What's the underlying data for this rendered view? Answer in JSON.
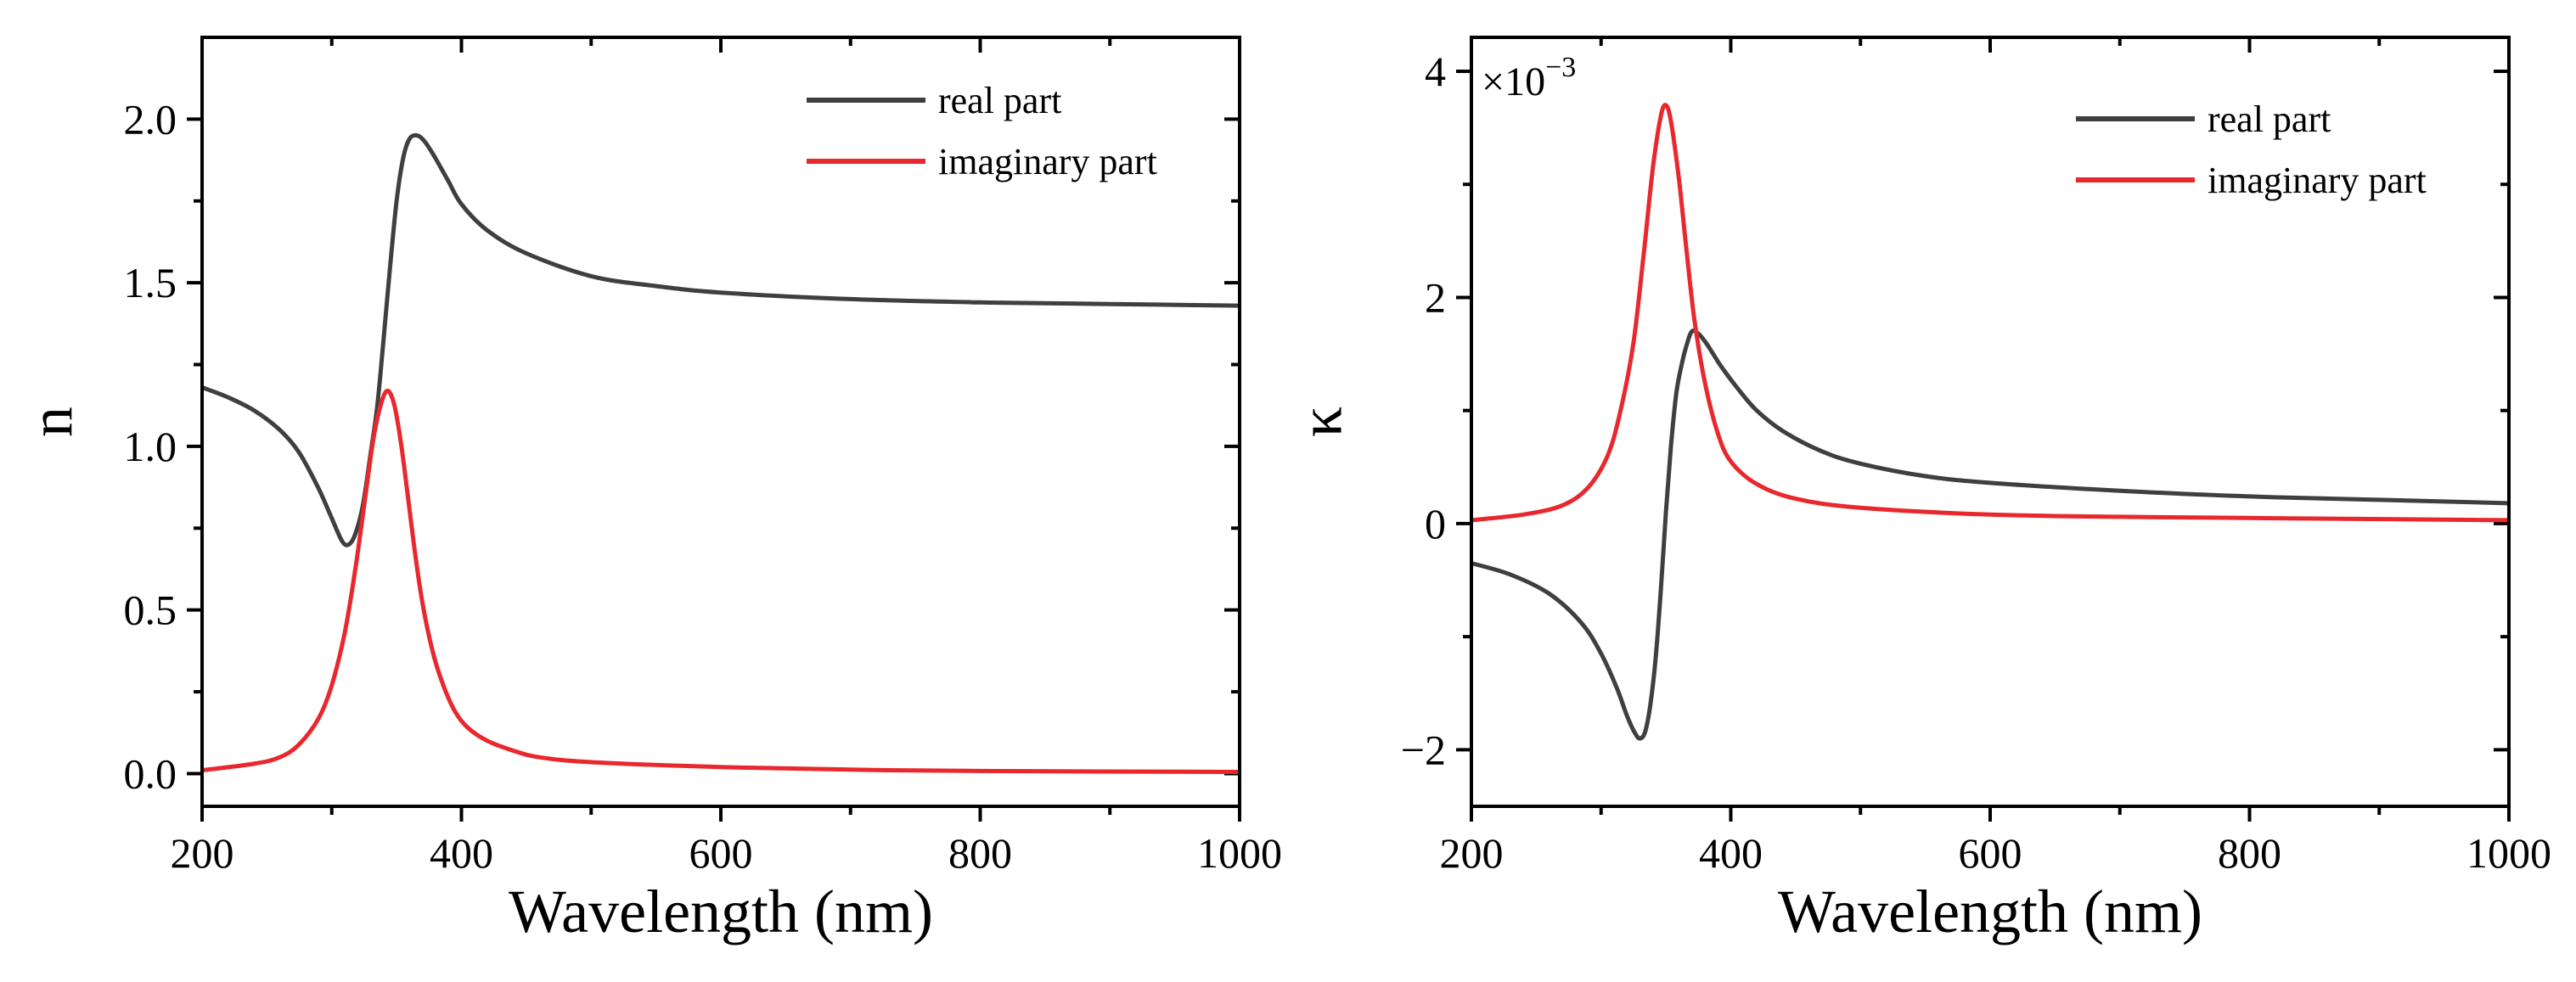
{
  "chart_data": [
    {
      "type": "line",
      "xlabel": "Wavelength (nm)",
      "ylabel": "n",
      "xlim": [
        200,
        1000
      ],
      "ylim": [
        -0.1,
        2.25
      ],
      "xticks": [
        200,
        400,
        600,
        800,
        1000
      ],
      "xtick_labels": [
        "200",
        "400",
        "600",
        "800",
        "1000"
      ],
      "yticks": [
        0.0,
        0.5,
        1.0,
        1.5,
        2.0
      ],
      "ytick_labels": [
        "0.0",
        "0.5",
        "1.0",
        "1.5",
        "2.0"
      ],
      "legend_position": "top-right",
      "series": [
        {
          "name": "real part",
          "color": "#3f3f3f",
          "x": [
            200,
            220,
            240,
            260,
            275,
            290,
            300,
            308,
            313,
            318,
            324,
            330,
            335,
            340,
            345,
            350,
            355,
            360,
            366,
            372,
            380,
            390,
            400,
            420,
            450,
            500,
            550,
            600,
            700,
            800,
            900,
            1000
          ],
          "y": [
            1.18,
            1.15,
            1.11,
            1.05,
            0.98,
            0.87,
            0.78,
            0.71,
            0.7,
            0.73,
            0.82,
            0.98,
            1.12,
            1.33,
            1.55,
            1.75,
            1.88,
            1.94,
            1.95,
            1.93,
            1.88,
            1.81,
            1.74,
            1.66,
            1.59,
            1.52,
            1.49,
            1.47,
            1.45,
            1.44,
            1.435,
            1.43
          ]
        },
        {
          "name": "imaginary part",
          "color": "#e8282d",
          "x": [
            200,
            240,
            260,
            275,
            290,
            300,
            310,
            318,
            325,
            332,
            338,
            343,
            348,
            353,
            358,
            364,
            370,
            378,
            386,
            395,
            405,
            420,
            440,
            460,
            500,
            600,
            700,
            800,
            1000
          ],
          "y": [
            0.01,
            0.03,
            0.05,
            0.09,
            0.17,
            0.27,
            0.43,
            0.62,
            0.82,
            1.02,
            1.13,
            1.17,
            1.13,
            1.02,
            0.87,
            0.68,
            0.52,
            0.37,
            0.27,
            0.19,
            0.14,
            0.1,
            0.07,
            0.05,
            0.035,
            0.02,
            0.012,
            0.008,
            0.005
          ]
        }
      ]
    },
    {
      "type": "line",
      "xlabel": "Wavelength (nm)",
      "ylabel": "κ",
      "scale_label": "×10",
      "scale_exponent": "−3",
      "xlim": [
        200,
        1000
      ],
      "ylim": [
        -2.5,
        4.3
      ],
      "xticks": [
        200,
        400,
        600,
        800,
        1000
      ],
      "xtick_labels": [
        "200",
        "400",
        "600",
        "800",
        "1000"
      ],
      "yticks": [
        -2,
        0,
        2,
        4
      ],
      "ytick_labels": [
        "−2",
        "0",
        "2",
        "4"
      ],
      "legend_position": "top-right",
      "series": [
        {
          "name": "real part",
          "color": "#3f3f3f",
          "x": [
            200,
            230,
            260,
            285,
            300,
            312,
            320,
            326,
            330,
            334,
            338,
            342,
            346,
            350,
            354,
            358,
            362,
            366,
            370,
            375,
            382,
            392,
            405,
            420,
            440,
            470,
            500,
            550,
            600,
            700,
            800,
            900,
            1000
          ],
          "y": [
            -0.35,
            -0.45,
            -0.62,
            -0.88,
            -1.15,
            -1.45,
            -1.7,
            -1.85,
            -1.9,
            -1.84,
            -1.6,
            -1.2,
            -0.6,
            0.1,
            0.7,
            1.15,
            1.4,
            1.58,
            1.7,
            1.68,
            1.58,
            1.4,
            1.2,
            1.0,
            0.82,
            0.64,
            0.53,
            0.42,
            0.36,
            0.29,
            0.24,
            0.21,
            0.18
          ]
        },
        {
          "name": "imaginary part",
          "color": "#e8282d",
          "x": [
            200,
            240,
            270,
            290,
            305,
            315,
            325,
            333,
            340,
            346,
            350,
            354,
            360,
            366,
            372,
            380,
            390,
            400,
            420,
            450,
            500,
            600,
            700,
            800,
            1000
          ],
          "y": [
            0.03,
            0.08,
            0.16,
            0.32,
            0.6,
            1.0,
            1.6,
            2.4,
            3.15,
            3.6,
            3.7,
            3.55,
            3.05,
            2.4,
            1.8,
            1.25,
            0.8,
            0.55,
            0.35,
            0.22,
            0.14,
            0.08,
            0.06,
            0.05,
            0.03
          ]
        }
      ]
    }
  ]
}
